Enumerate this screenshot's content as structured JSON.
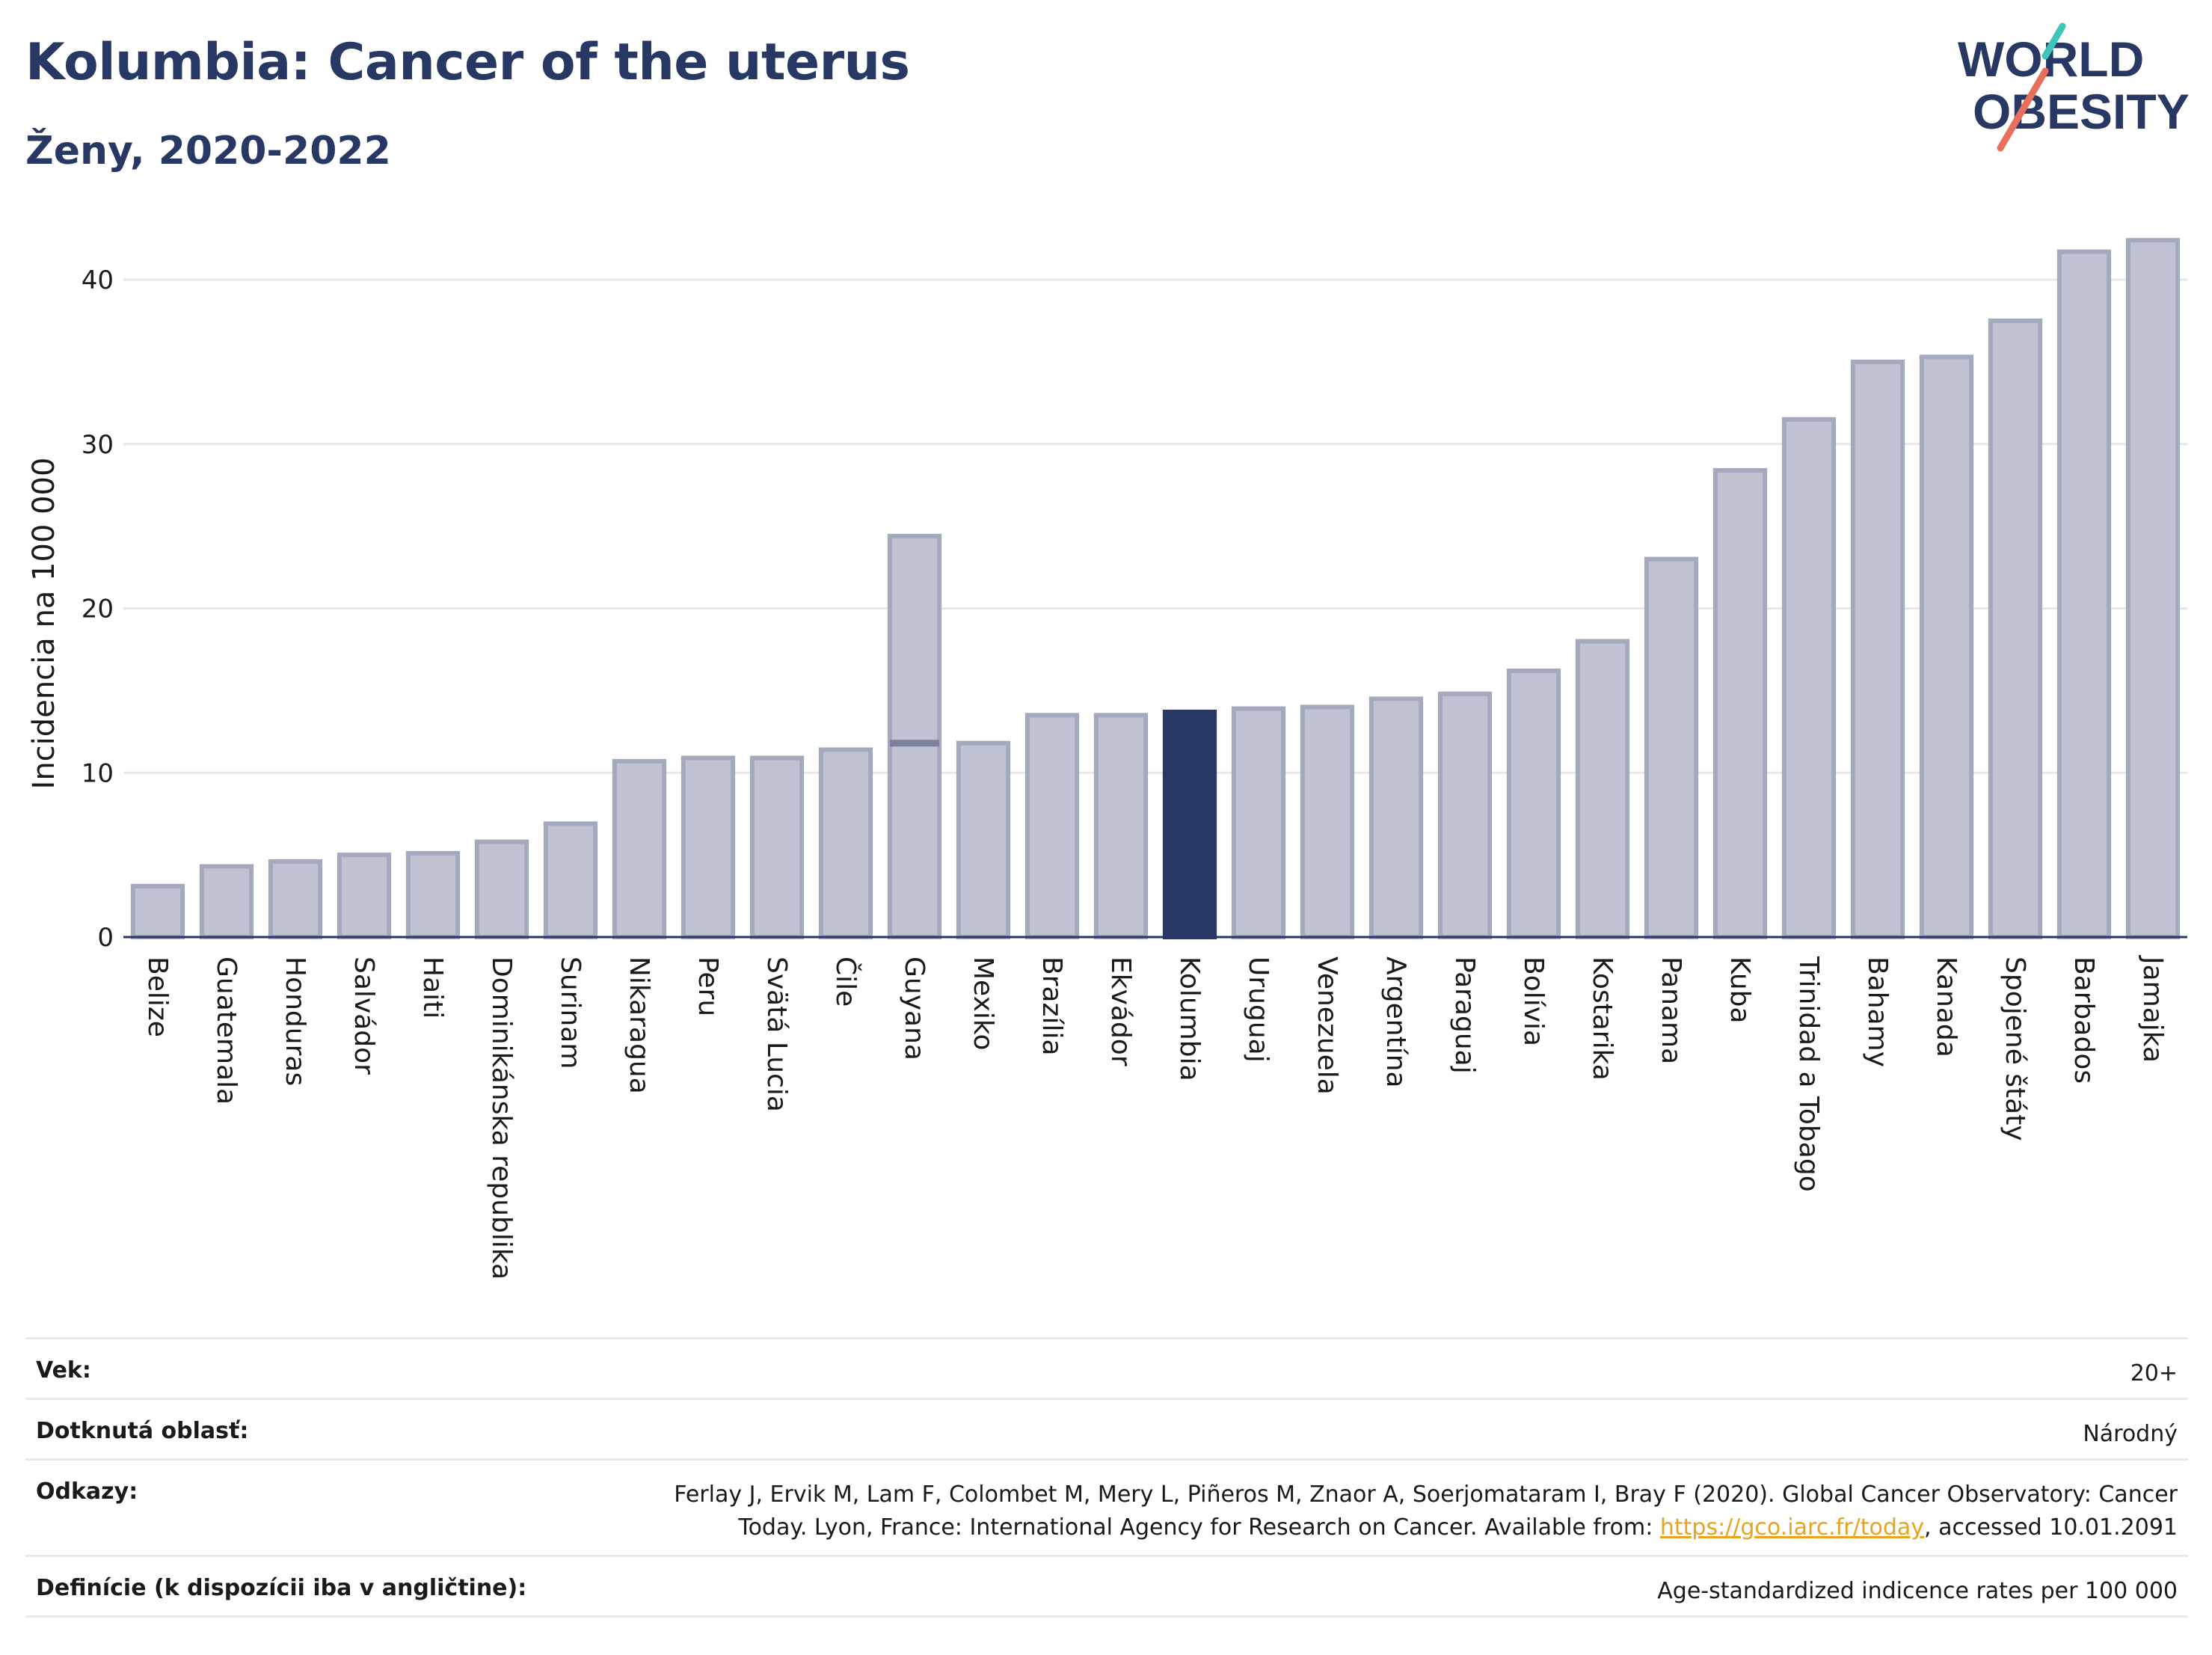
{
  "header": {
    "title": "Kolumbia: Cancer of the uterus",
    "subtitle": "Ženy, 2020-2022"
  },
  "logo": {
    "line1": "WORLD",
    "line2": "OBESITY",
    "accent_teal": "#3ec4b8",
    "accent_red": "#e8705a",
    "color": "#283864"
  },
  "colors": {
    "bar": "#bfc3d1",
    "bar_border": "#a4aabd",
    "highlight": "#283864",
    "grid": "#e6e7ec",
    "text": "#1a1a1a"
  },
  "chart_data": {
    "type": "bar",
    "ylabel": "Incidencia na 100 000",
    "ylim": [
      0,
      43
    ],
    "yticks": [
      0,
      10,
      20,
      30,
      40
    ],
    "grid": true,
    "highlight": "Kolumbia",
    "categories": [
      "Belize",
      "Guatemala",
      "Honduras",
      "Salvádor",
      "Haiti",
      "Dominikánska republika",
      "Surinam",
      "Nikaragua",
      "Peru",
      "Svätá Lucia",
      "Čile",
      "Guyana",
      "Mexiko",
      "Brazília",
      "Ekvádor",
      "Kolumbia",
      "Uruguaj",
      "Venezuela",
      "Argentína",
      "Paraguaj",
      "Bolívia",
      "Kostarika",
      "Panama",
      "Kuba",
      "Trinidad a Tobago",
      "Bahamy",
      "Kanada",
      "Spojené štáty",
      "Barbados",
      "Jamajka"
    ],
    "values": [
      3.1,
      4.3,
      4.6,
      5.0,
      5.1,
      5.8,
      6.9,
      10.7,
      10.9,
      10.9,
      11.4,
      24.4,
      11.8,
      13.5,
      13.5,
      13.7,
      13.9,
      14.0,
      14.5,
      14.8,
      16.2,
      18.0,
      23.0,
      28.4,
      31.5,
      35.0,
      35.3,
      37.5,
      41.7,
      42.4
    ],
    "secondary_markers": {
      "Guyana": 11.8
    }
  },
  "meta": {
    "age_label": "Vek:",
    "age_value": "20+",
    "area_label": "Dotknutá oblasť:",
    "area_value": "Národný",
    "refs_label": "Odkazy:",
    "refs_line1": "Ferlay J, Ervik M, Lam F, Colombet M, Mery L, Piñeros M, Znaor A, Soerjomataram I, Bray F (2020). Global Cancer Observatory: Cancer",
    "refs_line2_pre": "Today. Lyon, France: International Agency for Research on Cancer. Available from: ",
    "refs_link": "https://gco.iarc.fr/today",
    "refs_line2_post": ", accessed 10.01.2091",
    "def_label": "Definície (k dispozícii iba v angličtine):",
    "def_value": "Age-standardized indicence rates per 100 000"
  }
}
